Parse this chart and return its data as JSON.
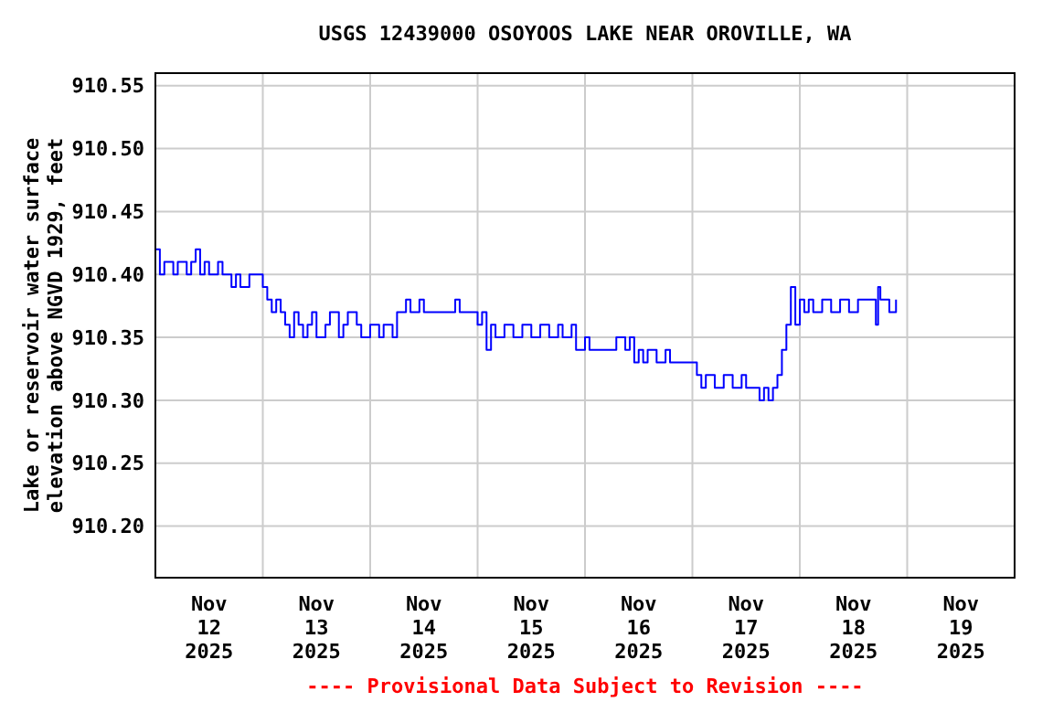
{
  "chart_data": {
    "type": "step",
    "title": "USGS 12439000 OSOYOOS LAKE NEAR OROVILLE, WA",
    "ylabel": "Lake or reservoir water surface\nelevation above NGVD 1929, feet",
    "annotations": [
      "---- Provisional Data Subject to Revision ----"
    ],
    "xlim": [
      "2025-11-12T00:00",
      "2025-11-20T00:00"
    ],
    "xticks": [
      {
        "value": "2025-11-12T12:00",
        "label": "Nov\n12\n2025"
      },
      {
        "value": "2025-11-13T00:00",
        "label": null
      },
      {
        "value": "2025-11-13T12:00",
        "label": "Nov\n13\n2025"
      },
      {
        "value": "2025-11-14T00:00",
        "label": null
      },
      {
        "value": "2025-11-14T12:00",
        "label": "Nov\n14\n2025"
      },
      {
        "value": "2025-11-15T00:00",
        "label": null
      },
      {
        "value": "2025-11-15T12:00",
        "label": "Nov\n15\n2025"
      },
      {
        "value": "2025-11-16T00:00",
        "label": null
      },
      {
        "value": "2025-11-16T12:00",
        "label": "Nov\n16\n2025"
      },
      {
        "value": "2025-11-17T00:00",
        "label": null
      },
      {
        "value": "2025-11-17T12:00",
        "label": "Nov\n17\n2025"
      },
      {
        "value": "2025-11-18T00:00",
        "label": null
      },
      {
        "value": "2025-11-18T12:00",
        "label": "Nov\n18\n2025"
      },
      {
        "value": "2025-11-19T00:00",
        "label": null
      },
      {
        "value": "2025-11-19T12:00",
        "label": "Nov\n19\n2025"
      }
    ],
    "ylim": [
      910.159,
      910.56
    ],
    "yticks": [
      {
        "value": 910.2,
        "label": "910.20"
      },
      {
        "value": 910.25,
        "label": "910.25"
      },
      {
        "value": 910.3,
        "label": "910.30"
      },
      {
        "value": 910.35,
        "label": "910.35"
      },
      {
        "value": 910.4,
        "label": "910.40"
      },
      {
        "value": 910.45,
        "label": "910.45"
      },
      {
        "value": 910.5,
        "label": "910.50"
      },
      {
        "value": 910.55,
        "label": "910.55"
      }
    ],
    "grid": true,
    "line_style": "solid",
    "marker": "none",
    "series": [
      {
        "color": "#0000ff",
        "x": [
          "2025-11-12T00:00",
          "2025-11-12T01:00",
          "2025-11-12T02:00",
          "2025-11-12T04:00",
          "2025-11-12T05:00",
          "2025-11-12T07:00",
          "2025-11-12T08:00",
          "2025-11-12T09:00",
          "2025-11-12T10:00",
          "2025-11-12T11:00",
          "2025-11-12T12:00",
          "2025-11-12T14:00",
          "2025-11-12T15:00",
          "2025-11-12T17:00",
          "2025-11-12T18:00",
          "2025-11-12T19:00",
          "2025-11-12T21:00",
          "2025-11-13T00:00",
          "2025-11-13T01:00",
          "2025-11-13T02:00",
          "2025-11-13T03:00",
          "2025-11-13T04:00",
          "2025-11-13T05:00",
          "2025-11-13T06:00",
          "2025-11-13T07:00",
          "2025-11-13T08:00",
          "2025-11-13T09:00",
          "2025-11-13T10:00",
          "2025-11-13T11:00",
          "2025-11-13T12:00",
          "2025-11-13T14:00",
          "2025-11-13T15:00",
          "2025-11-13T17:00",
          "2025-11-13T18:00",
          "2025-11-13T19:00",
          "2025-11-13T21:00",
          "2025-11-13T22:00",
          "2025-11-14T00:00",
          "2025-11-14T02:00",
          "2025-11-14T03:00",
          "2025-11-14T05:00",
          "2025-11-14T06:00",
          "2025-11-14T08:00",
          "2025-11-14T09:00",
          "2025-11-14T11:00",
          "2025-11-14T12:00",
          "2025-11-14T19:00",
          "2025-11-14T20:00",
          "2025-11-15T00:00",
          "2025-11-15T01:00",
          "2025-11-15T02:00",
          "2025-11-15T03:00",
          "2025-11-15T04:00",
          "2025-11-15T06:00",
          "2025-11-15T08:00",
          "2025-11-15T10:00",
          "2025-11-15T12:00",
          "2025-11-15T14:00",
          "2025-11-15T16:00",
          "2025-11-15T18:00",
          "2025-11-15T19:00",
          "2025-11-15T21:00",
          "2025-11-15T22:00",
          "2025-11-16T00:00",
          "2025-11-16T01:00",
          "2025-11-16T06:00",
          "2025-11-16T07:00",
          "2025-11-16T09:00",
          "2025-11-16T10:00",
          "2025-11-16T11:00",
          "2025-11-16T12:00",
          "2025-11-16T13:00",
          "2025-11-16T14:00",
          "2025-11-16T16:00",
          "2025-11-16T18:00",
          "2025-11-16T19:00",
          "2025-11-17T01:00",
          "2025-11-17T02:00",
          "2025-11-17T03:00",
          "2025-11-17T05:00",
          "2025-11-17T07:00",
          "2025-11-17T09:00",
          "2025-11-17T11:00",
          "2025-11-17T12:00",
          "2025-11-17T15:00",
          "2025-11-17T16:00",
          "2025-11-17T17:00",
          "2025-11-17T18:00",
          "2025-11-17T19:00",
          "2025-11-17T20:00",
          "2025-11-17T21:00",
          "2025-11-17T22:00",
          "2025-11-17T23:00",
          "2025-11-18T00:00",
          "2025-11-18T01:00",
          "2025-11-18T02:00",
          "2025-11-18T03:00",
          "2025-11-18T05:00",
          "2025-11-18T07:00",
          "2025-11-18T09:00",
          "2025-11-18T11:00",
          "2025-11-18T13:00",
          "2025-11-18T15:00",
          "2025-11-18T17:00",
          "2025-11-18T17:30",
          "2025-11-18T18:00",
          "2025-11-18T20:00",
          "2025-11-18T21:30"
        ],
        "values": [
          910.42,
          910.4,
          910.41,
          910.4,
          910.41,
          910.4,
          910.41,
          910.42,
          910.4,
          910.41,
          910.4,
          910.41,
          910.4,
          910.39,
          910.4,
          910.39,
          910.4,
          910.39,
          910.38,
          910.37,
          910.38,
          910.37,
          910.36,
          910.35,
          910.37,
          910.36,
          910.35,
          910.36,
          910.37,
          910.35,
          910.36,
          910.37,
          910.35,
          910.36,
          910.37,
          910.36,
          910.35,
          910.36,
          910.35,
          910.36,
          910.35,
          910.37,
          910.38,
          910.37,
          910.38,
          910.37,
          910.38,
          910.37,
          910.36,
          910.37,
          910.34,
          910.36,
          910.35,
          910.36,
          910.35,
          910.36,
          910.35,
          910.36,
          910.35,
          910.36,
          910.35,
          910.36,
          910.34,
          910.35,
          910.34,
          910.34,
          910.35,
          910.34,
          910.35,
          910.33,
          910.34,
          910.33,
          910.34,
          910.33,
          910.34,
          910.33,
          910.32,
          910.31,
          910.32,
          910.31,
          910.32,
          910.31,
          910.32,
          910.31,
          910.3,
          910.31,
          910.3,
          910.31,
          910.32,
          910.34,
          910.36,
          910.39,
          910.36,
          910.38,
          910.37,
          910.38,
          910.37,
          910.38,
          910.37,
          910.38,
          910.37,
          910.38,
          910.38,
          910.36,
          910.39,
          910.38,
          910.37,
          910.38
        ]
      }
    ]
  }
}
